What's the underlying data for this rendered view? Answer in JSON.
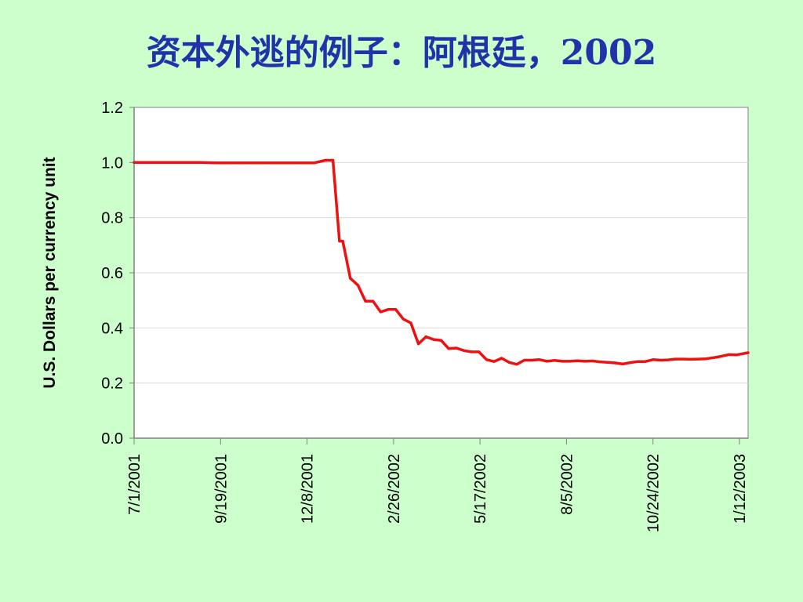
{
  "slide": {
    "title": "资本外逃的例子：阿根廷，2002",
    "background_color": "#ccffcc",
    "title_color": "#2233aa"
  },
  "chart_data": {
    "type": "line",
    "title": "资本外逃的例子：阿根廷，2002",
    "xlabel": "",
    "ylabel": "U.S. Dollars per currency unit",
    "ylim": [
      0,
      1.2
    ],
    "yticks": [
      "0.0",
      "0.2",
      "0.4",
      "0.6",
      "0.8",
      "1.0",
      "1.2"
    ],
    "xlim": [
      "2001-07-01",
      "2003-01-20"
    ],
    "xticks": [
      "7/1/2001",
      "9/19/2001",
      "12/8/2001",
      "2/26/2002",
      "5/17/2002",
      "8/5/2002",
      "10/24/2002",
      "1/12/2003"
    ],
    "grid": "horizontal",
    "line_color": "#ee1111",
    "series": [
      {
        "x": [
          "2001-07-01",
          "2001-07-15",
          "2001-08-01",
          "2001-08-15",
          "2001-09-01",
          "2001-09-15",
          "2001-10-01",
          "2001-10-15",
          "2001-11-01",
          "2001-11-15",
          "2001-12-01",
          "2001-12-15",
          "2001-12-25",
          "2002-01-01",
          "2002-01-07",
          "2002-01-10",
          "2002-01-17",
          "2002-01-24",
          "2002-01-31",
          "2002-02-07",
          "2002-02-14",
          "2002-02-21",
          "2002-02-28",
          "2002-03-07",
          "2002-03-14",
          "2002-03-21",
          "2002-03-28",
          "2002-04-04",
          "2002-04-11",
          "2002-04-18",
          "2002-04-25",
          "2002-05-02",
          "2002-05-09",
          "2002-05-16",
          "2002-05-23",
          "2002-05-30",
          "2002-06-06",
          "2002-06-13",
          "2002-06-20",
          "2002-06-27",
          "2002-07-04",
          "2002-07-11",
          "2002-07-18",
          "2002-07-25",
          "2002-08-01",
          "2002-08-08",
          "2002-08-15",
          "2002-08-22",
          "2002-08-29",
          "2002-09-05",
          "2002-09-12",
          "2002-09-19",
          "2002-09-26",
          "2002-10-03",
          "2002-10-10",
          "2002-10-17",
          "2002-10-24",
          "2002-10-31",
          "2002-11-07",
          "2002-11-14",
          "2002-11-21",
          "2002-11-28",
          "2002-12-05",
          "2002-12-12",
          "2002-12-19",
          "2002-12-26",
          "2003-01-02",
          "2003-01-09",
          "2003-01-20"
        ],
        "y": [
          1.0,
          1.0,
          1.0,
          1.0,
          1.0,
          0.999,
          0.999,
          0.999,
          0.999,
          0.999,
          0.999,
          0.999,
          1.008,
          1.008,
          0.715,
          0.715,
          0.58,
          0.555,
          0.497,
          0.497,
          0.458,
          0.467,
          0.467,
          0.432,
          0.418,
          0.342,
          0.368,
          0.358,
          0.355,
          0.325,
          0.327,
          0.318,
          0.313,
          0.313,
          0.285,
          0.278,
          0.29,
          0.275,
          0.268,
          0.283,
          0.283,
          0.285,
          0.279,
          0.282,
          0.279,
          0.279,
          0.281,
          0.279,
          0.28,
          0.277,
          0.275,
          0.273,
          0.269,
          0.274,
          0.278,
          0.278,
          0.285,
          0.283,
          0.284,
          0.287,
          0.287,
          0.286,
          0.287,
          0.288,
          0.292,
          0.297,
          0.303,
          0.302,
          0.31
        ]
      }
    ]
  }
}
